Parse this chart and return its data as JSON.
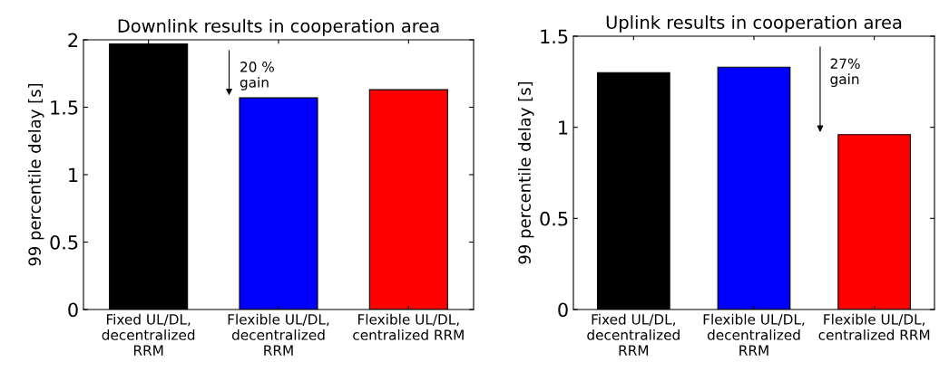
{
  "chart_data": [
    {
      "type": "bar",
      "title": "Downlink results in cooperation area",
      "ylabel": "99 percentile delay [s]",
      "categories": [
        "Fixed UL/DL,\ndecentralized\nRRM",
        "Flexible UL/DL,\ndecentralized\nRRM",
        "Flexible UL/DL,\ncentralized RRM"
      ],
      "values": [
        1.97,
        1.57,
        1.63
      ],
      "colors": [
        "#000000",
        "#0000ff",
        "#ff0000"
      ],
      "ylim": [
        0,
        2
      ],
      "yticks": [
        0,
        0.5,
        1,
        1.5,
        2
      ],
      "grid": false,
      "annotations": [
        "20 %\ngain"
      ]
    },
    {
      "type": "bar",
      "title": "Uplink results in cooperation area",
      "ylabel": "99 percentile delay [s]",
      "categories": [
        "Fixed UL/DL,\ndecentralized\nRRM",
        "Flexible UL/DL,\ndecentralized\nRRM",
        "Flexible UL/DL,\ncentralized RRM"
      ],
      "values": [
        1.3,
        1.33,
        0.96
      ],
      "colors": [
        "#000000",
        "#0000ff",
        "#ff0000"
      ],
      "ylim": [
        0,
        1.5
      ],
      "yticks": [
        0,
        0.5,
        1,
        1.5
      ],
      "grid": false,
      "annotations": [
        "27%\ngain"
      ]
    }
  ]
}
